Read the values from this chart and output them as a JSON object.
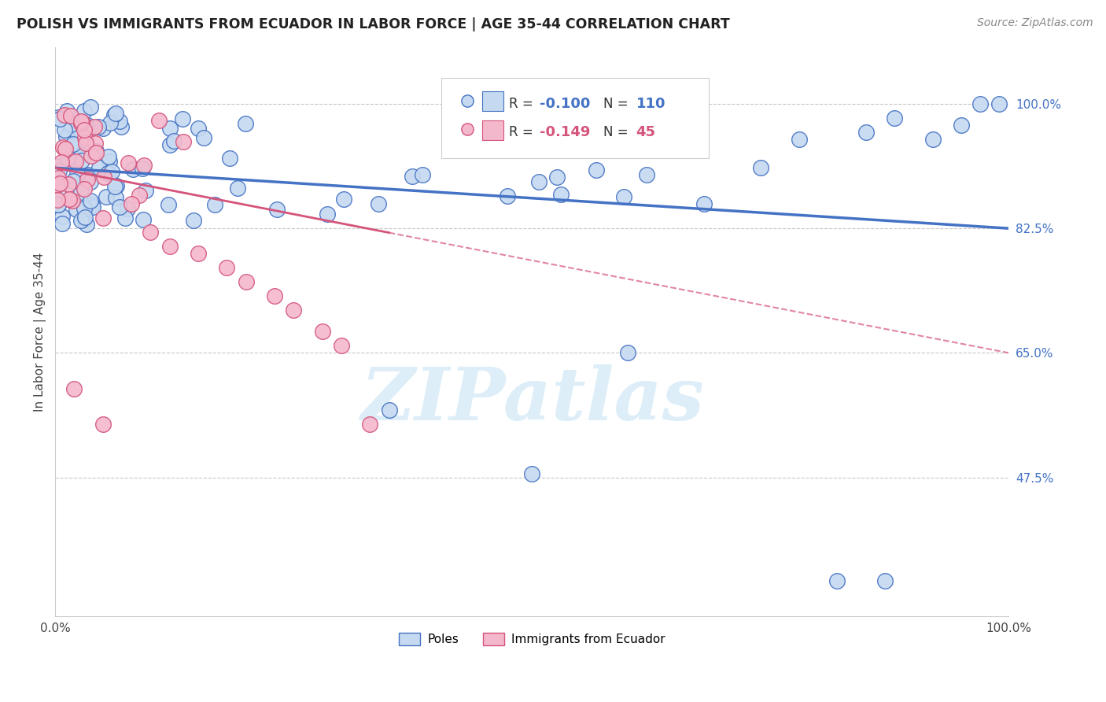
{
  "title": "POLISH VS IMMIGRANTS FROM ECUADOR IN LABOR FORCE | AGE 35-44 CORRELATION CHART",
  "source": "Source: ZipAtlas.com",
  "ylabel": "In Labor Force | Age 35-44",
  "legend_label_blue": "Poles",
  "legend_label_pink": "Immigrants from Ecuador",
  "R_blue": -0.1,
  "N_blue": 110,
  "R_pink": -0.149,
  "N_pink": 45,
  "right_yticks": [
    47.5,
    65.0,
    82.5,
    100.0
  ],
  "right_ytick_labels": [
    "47.5%",
    "65.0%",
    "82.5%",
    "100.0%"
  ],
  "blue_fill": "#c5d9f0",
  "blue_edge": "#4472c4",
  "pink_fill": "#f4b8cc",
  "pink_edge": "#d4547a",
  "pink_line_color": "#d4547a",
  "blue_line_color": "#4472c4",
  "xlim": [
    0,
    100
  ],
  "ylim": [
    28,
    108
  ],
  "background_color": "#ffffff",
  "grid_color": "#c8c8c8",
  "watermark": "ZIPatlas",
  "watermark_color": "#ddeef8"
}
